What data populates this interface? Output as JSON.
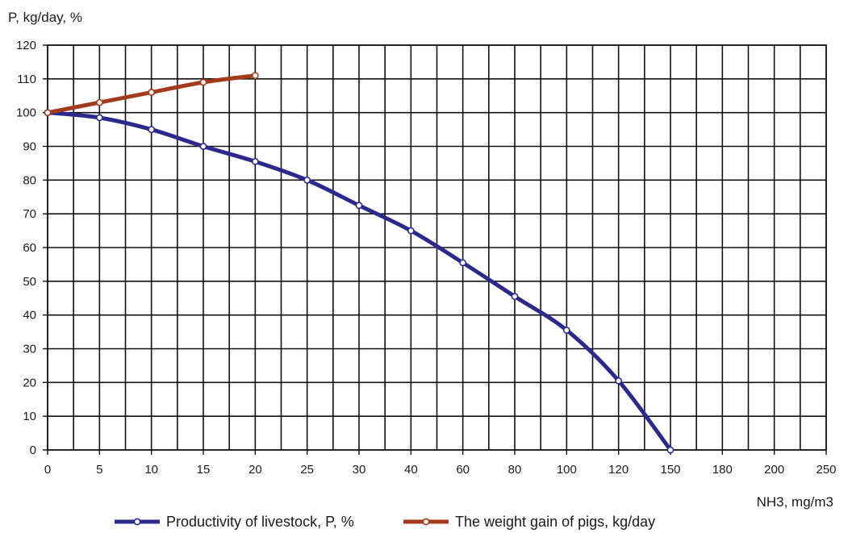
{
  "chart_data": {
    "type": "line",
    "title": "",
    "ylabel": "P, kg/day, %",
    "xlabel": "NH3, mg/m3",
    "x_categories": [
      "0",
      "5",
      "10",
      "15",
      "20",
      "25",
      "30",
      "40",
      "60",
      "80",
      "100",
      "120",
      "150",
      "180",
      "200",
      "250"
    ],
    "ylim": [
      0,
      120
    ],
    "yticks": [
      0,
      10,
      20,
      30,
      40,
      50,
      60,
      70,
      80,
      90,
      100,
      110,
      120
    ],
    "grid": true,
    "legend_position": "bottom",
    "series": [
      {
        "name": "Productivity of livestock, P, %",
        "color": "#2b2a8c",
        "marker": "open-circle",
        "x": [
          "0",
          "5",
          "10",
          "15",
          "20",
          "25",
          "30",
          "40",
          "60",
          "80",
          "100",
          "120",
          "150"
        ],
        "values": [
          100,
          98.5,
          95,
          90,
          85.5,
          80,
          72.5,
          65,
          55.5,
          45.5,
          35.5,
          20.5,
          0
        ]
      },
      {
        "name": "The weight gain of pigs, kg/day",
        "color": "#a33a1c",
        "marker": "open-circle",
        "x": [
          "0",
          "5",
          "10",
          "15",
          "20"
        ],
        "values": [
          100,
          103,
          106,
          109,
          111
        ]
      }
    ]
  }
}
